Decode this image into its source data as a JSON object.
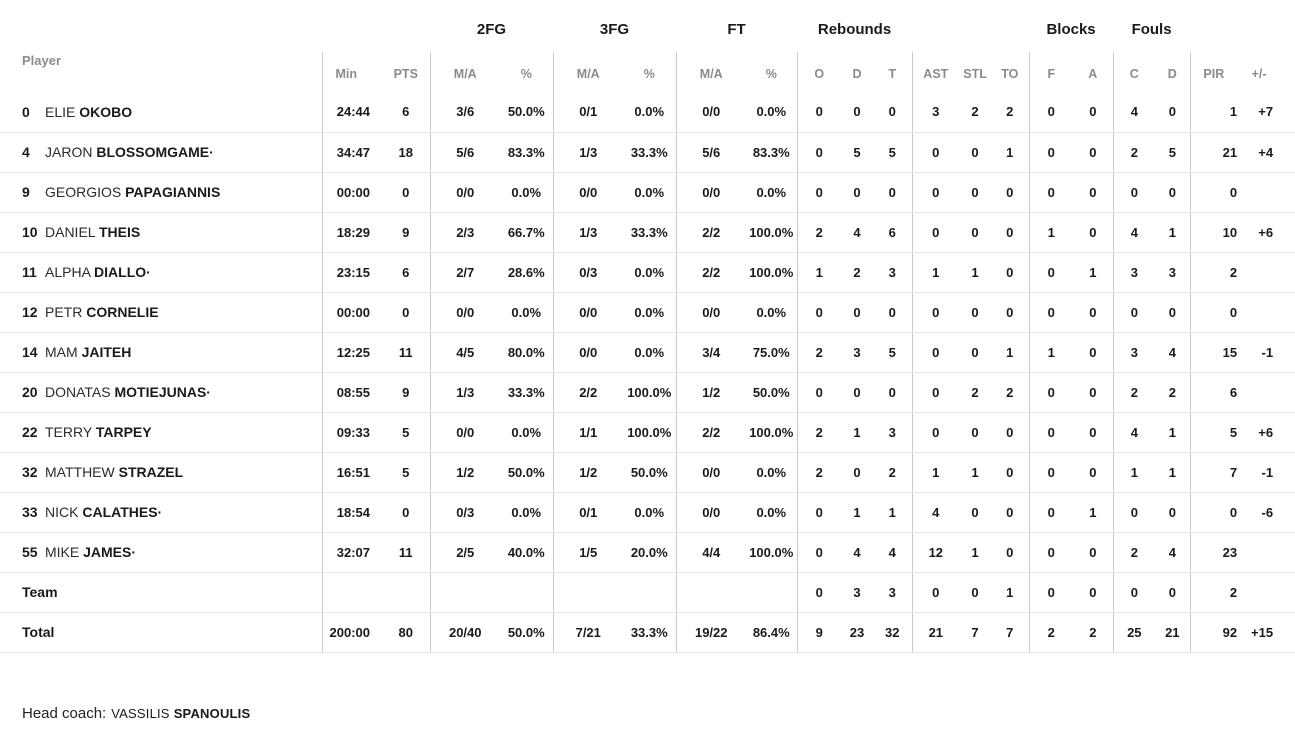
{
  "table": {
    "groups": {
      "fg2": "2FG",
      "fg3": "3FG",
      "ft": "FT",
      "rebounds": "Rebounds",
      "blocks": "Blocks",
      "fouls": "Fouls"
    },
    "columns": {
      "player": "Player",
      "min": "Min",
      "pts": "PTS",
      "ma": "M/A",
      "pct": "%",
      "o": "O",
      "d": "D",
      "t": "T",
      "ast": "AST",
      "stl": "STL",
      "to": "TO",
      "f": "F",
      "a": "A",
      "c": "C",
      "pir": "PIR",
      "pm": "+/-"
    },
    "starter_marker": "·",
    "players": [
      {
        "num": "0",
        "first": "ELIE",
        "last": "OKOBO",
        "starter": false,
        "min": "24:44",
        "pts": "6",
        "fg2_ma": "3/6",
        "fg2_pct": "50.0%",
        "fg3_ma": "0/1",
        "fg3_pct": "0.0%",
        "ft_ma": "0/0",
        "ft_pct": "0.0%",
        "reb_o": "0",
        "reb_d": "0",
        "reb_t": "0",
        "ast": "3",
        "stl": "2",
        "to": "2",
        "blk_f": "0",
        "blk_a": "0",
        "foul_c": "4",
        "foul_d": "0",
        "pir": "1",
        "plusminus": "+7"
      },
      {
        "num": "4",
        "first": "JARON",
        "last": "BLOSSOMGAME",
        "starter": true,
        "min": "34:47",
        "pts": "18",
        "fg2_ma": "5/6",
        "fg2_pct": "83.3%",
        "fg3_ma": "1/3",
        "fg3_pct": "33.3%",
        "ft_ma": "5/6",
        "ft_pct": "83.3%",
        "reb_o": "0",
        "reb_d": "5",
        "reb_t": "5",
        "ast": "0",
        "stl": "0",
        "to": "1",
        "blk_f": "0",
        "blk_a": "0",
        "foul_c": "2",
        "foul_d": "5",
        "pir": "21",
        "plusminus": "+4"
      },
      {
        "num": "9",
        "first": "GEORGIOS",
        "last": "PAPAGIANNIS",
        "starter": false,
        "min": "00:00",
        "pts": "0",
        "fg2_ma": "0/0",
        "fg2_pct": "0.0%",
        "fg3_ma": "0/0",
        "fg3_pct": "0.0%",
        "ft_ma": "0/0",
        "ft_pct": "0.0%",
        "reb_o": "0",
        "reb_d": "0",
        "reb_t": "0",
        "ast": "0",
        "stl": "0",
        "to": "0",
        "blk_f": "0",
        "blk_a": "0",
        "foul_c": "0",
        "foul_d": "0",
        "pir": "0",
        "plusminus": ""
      },
      {
        "num": "10",
        "first": "DANIEL",
        "last": "THEIS",
        "starter": false,
        "min": "18:29",
        "pts": "9",
        "fg2_ma": "2/3",
        "fg2_pct": "66.7%",
        "fg3_ma": "1/3",
        "fg3_pct": "33.3%",
        "ft_ma": "2/2",
        "ft_pct": "100.0%",
        "reb_o": "2",
        "reb_d": "4",
        "reb_t": "6",
        "ast": "0",
        "stl": "0",
        "to": "0",
        "blk_f": "1",
        "blk_a": "0",
        "foul_c": "4",
        "foul_d": "1",
        "pir": "10",
        "plusminus": "+6"
      },
      {
        "num": "11",
        "first": "ALPHA",
        "last": "DIALLO",
        "starter": true,
        "min": "23:15",
        "pts": "6",
        "fg2_ma": "2/7",
        "fg2_pct": "28.6%",
        "fg3_ma": "0/3",
        "fg3_pct": "0.0%",
        "ft_ma": "2/2",
        "ft_pct": "100.0%",
        "reb_o": "1",
        "reb_d": "2",
        "reb_t": "3",
        "ast": "1",
        "stl": "1",
        "to": "0",
        "blk_f": "0",
        "blk_a": "1",
        "foul_c": "3",
        "foul_d": "3",
        "pir": "2",
        "plusminus": ""
      },
      {
        "num": "12",
        "first": "PETR",
        "last": "CORNELIE",
        "starter": false,
        "min": "00:00",
        "pts": "0",
        "fg2_ma": "0/0",
        "fg2_pct": "0.0%",
        "fg3_ma": "0/0",
        "fg3_pct": "0.0%",
        "ft_ma": "0/0",
        "ft_pct": "0.0%",
        "reb_o": "0",
        "reb_d": "0",
        "reb_t": "0",
        "ast": "0",
        "stl": "0",
        "to": "0",
        "blk_f": "0",
        "blk_a": "0",
        "foul_c": "0",
        "foul_d": "0",
        "pir": "0",
        "plusminus": ""
      },
      {
        "num": "14",
        "first": "MAM",
        "last": "JAITEH",
        "starter": false,
        "min": "12:25",
        "pts": "11",
        "fg2_ma": "4/5",
        "fg2_pct": "80.0%",
        "fg3_ma": "0/0",
        "fg3_pct": "0.0%",
        "ft_ma": "3/4",
        "ft_pct": "75.0%",
        "reb_o": "2",
        "reb_d": "3",
        "reb_t": "5",
        "ast": "0",
        "stl": "0",
        "to": "1",
        "blk_f": "1",
        "blk_a": "0",
        "foul_c": "3",
        "foul_d": "4",
        "pir": "15",
        "plusminus": "-1"
      },
      {
        "num": "20",
        "first": "DONATAS",
        "last": "MOTIEJUNAS",
        "starter": true,
        "min": "08:55",
        "pts": "9",
        "fg2_ma": "1/3",
        "fg2_pct": "33.3%",
        "fg3_ma": "2/2",
        "fg3_pct": "100.0%",
        "ft_ma": "1/2",
        "ft_pct": "50.0%",
        "reb_o": "0",
        "reb_d": "0",
        "reb_t": "0",
        "ast": "0",
        "stl": "2",
        "to": "2",
        "blk_f": "0",
        "blk_a": "0",
        "foul_c": "2",
        "foul_d": "2",
        "pir": "6",
        "plusminus": ""
      },
      {
        "num": "22",
        "first": "TERRY",
        "last": "TARPEY",
        "starter": false,
        "min": "09:33",
        "pts": "5",
        "fg2_ma": "0/0",
        "fg2_pct": "0.0%",
        "fg3_ma": "1/1",
        "fg3_pct": "100.0%",
        "ft_ma": "2/2",
        "ft_pct": "100.0%",
        "reb_o": "2",
        "reb_d": "1",
        "reb_t": "3",
        "ast": "0",
        "stl": "0",
        "to": "0",
        "blk_f": "0",
        "blk_a": "0",
        "foul_c": "4",
        "foul_d": "1",
        "pir": "5",
        "plusminus": "+6"
      },
      {
        "num": "32",
        "first": "MATTHEW",
        "last": "STRAZEL",
        "starter": false,
        "min": "16:51",
        "pts": "5",
        "fg2_ma": "1/2",
        "fg2_pct": "50.0%",
        "fg3_ma": "1/2",
        "fg3_pct": "50.0%",
        "ft_ma": "0/0",
        "ft_pct": "0.0%",
        "reb_o": "2",
        "reb_d": "0",
        "reb_t": "2",
        "ast": "1",
        "stl": "1",
        "to": "0",
        "blk_f": "0",
        "blk_a": "0",
        "foul_c": "1",
        "foul_d": "1",
        "pir": "7",
        "plusminus": "-1"
      },
      {
        "num": "33",
        "first": "NICK",
        "last": "CALATHES",
        "starter": true,
        "min": "18:54",
        "pts": "0",
        "fg2_ma": "0/3",
        "fg2_pct": "0.0%",
        "fg3_ma": "0/1",
        "fg3_pct": "0.0%",
        "ft_ma": "0/0",
        "ft_pct": "0.0%",
        "reb_o": "0",
        "reb_d": "1",
        "reb_t": "1",
        "ast": "4",
        "stl": "0",
        "to": "0",
        "blk_f": "0",
        "blk_a": "1",
        "foul_c": "0",
        "foul_d": "0",
        "pir": "0",
        "plusminus": "-6"
      },
      {
        "num": "55",
        "first": "MIKE",
        "last": "JAMES",
        "starter": true,
        "min": "32:07",
        "pts": "11",
        "fg2_ma": "2/5",
        "fg2_pct": "40.0%",
        "fg3_ma": "1/5",
        "fg3_pct": "20.0%",
        "ft_ma": "4/4",
        "ft_pct": "100.0%",
        "reb_o": "0",
        "reb_d": "4",
        "reb_t": "4",
        "ast": "12",
        "stl": "1",
        "to": "0",
        "blk_f": "0",
        "blk_a": "0",
        "foul_c": "2",
        "foul_d": "4",
        "pir": "23",
        "plusminus": ""
      }
    ],
    "team_row": {
      "label": "Team",
      "min": "",
      "pts": "",
      "fg2_ma": "",
      "fg2_pct": "",
      "fg3_ma": "",
      "fg3_pct": "",
      "ft_ma": "",
      "ft_pct": "",
      "reb_o": "0",
      "reb_d": "3",
      "reb_t": "3",
      "ast": "0",
      "stl": "0",
      "to": "1",
      "blk_f": "0",
      "blk_a": "0",
      "foul_c": "0",
      "foul_d": "0",
      "pir": "2",
      "plusminus": ""
    },
    "total_row": {
      "label": "Total",
      "min": "200:00",
      "pts": "80",
      "fg2_ma": "20/40",
      "fg2_pct": "50.0%",
      "fg3_ma": "7/21",
      "fg3_pct": "33.3%",
      "ft_ma": "19/22",
      "ft_pct": "86.4%",
      "reb_o": "9",
      "reb_d": "23",
      "reb_t": "32",
      "ast": "21",
      "stl": "7",
      "to": "7",
      "blk_f": "2",
      "blk_a": "2",
      "foul_c": "25",
      "foul_d": "21",
      "pir": "92",
      "plusminus": "+15"
    }
  },
  "footer": {
    "head_coach_label": "Head coach:",
    "coach_first": "VASSILIS",
    "coach_last": "SPANOULIS"
  }
}
